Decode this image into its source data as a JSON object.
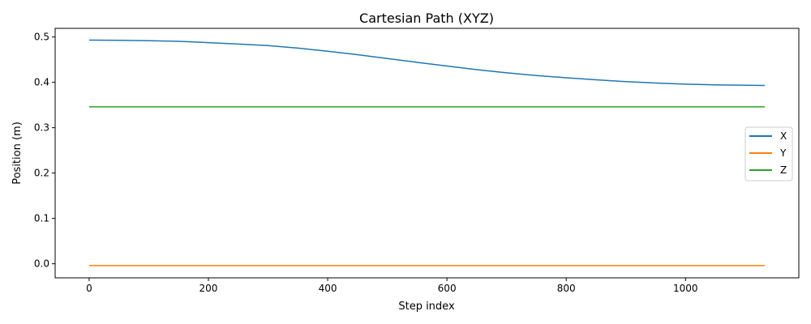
{
  "chart_data": {
    "type": "line",
    "title": "Cartesian Path (XYZ)",
    "xlabel": "Step index",
    "ylabel": "Position (m)",
    "xlim": [
      -57,
      1190
    ],
    "ylim": [
      -0.031,
      0.519
    ],
    "xticks": [
      0,
      200,
      400,
      600,
      800,
      1000
    ],
    "xtick_labels": [
      "0",
      "200",
      "400",
      "600",
      "800",
      "1000"
    ],
    "yticks": [
      0.0,
      0.1,
      0.2,
      0.3,
      0.4,
      0.5
    ],
    "ytick_labels": [
      "0.0",
      "0.1",
      "0.2",
      "0.3",
      "0.4",
      "0.5"
    ],
    "grid": false,
    "legend_position": "center-right",
    "series": [
      {
        "name": "X",
        "color": "#1f77b4",
        "x": [
          0,
          50,
          100,
          150,
          200,
          250,
          300,
          350,
          400,
          450,
          500,
          550,
          600,
          650,
          700,
          750,
          800,
          850,
          900,
          950,
          1000,
          1050,
          1100,
          1133
        ],
        "y": [
          0.493,
          0.4927,
          0.4918,
          0.4905,
          0.4875,
          0.4845,
          0.481,
          0.4755,
          0.4685,
          0.461,
          0.4525,
          0.444,
          0.436,
          0.428,
          0.421,
          0.415,
          0.41,
          0.4055,
          0.4015,
          0.3985,
          0.396,
          0.3945,
          0.3935,
          0.393
        ]
      },
      {
        "name": "Y",
        "color": "#ff7f0e",
        "x": [
          0,
          1133
        ],
        "y": [
          -0.004,
          -0.004
        ]
      },
      {
        "name": "Z",
        "color": "#2ca02c",
        "x": [
          0,
          1133
        ],
        "y": [
          0.346,
          0.346
        ]
      }
    ]
  }
}
